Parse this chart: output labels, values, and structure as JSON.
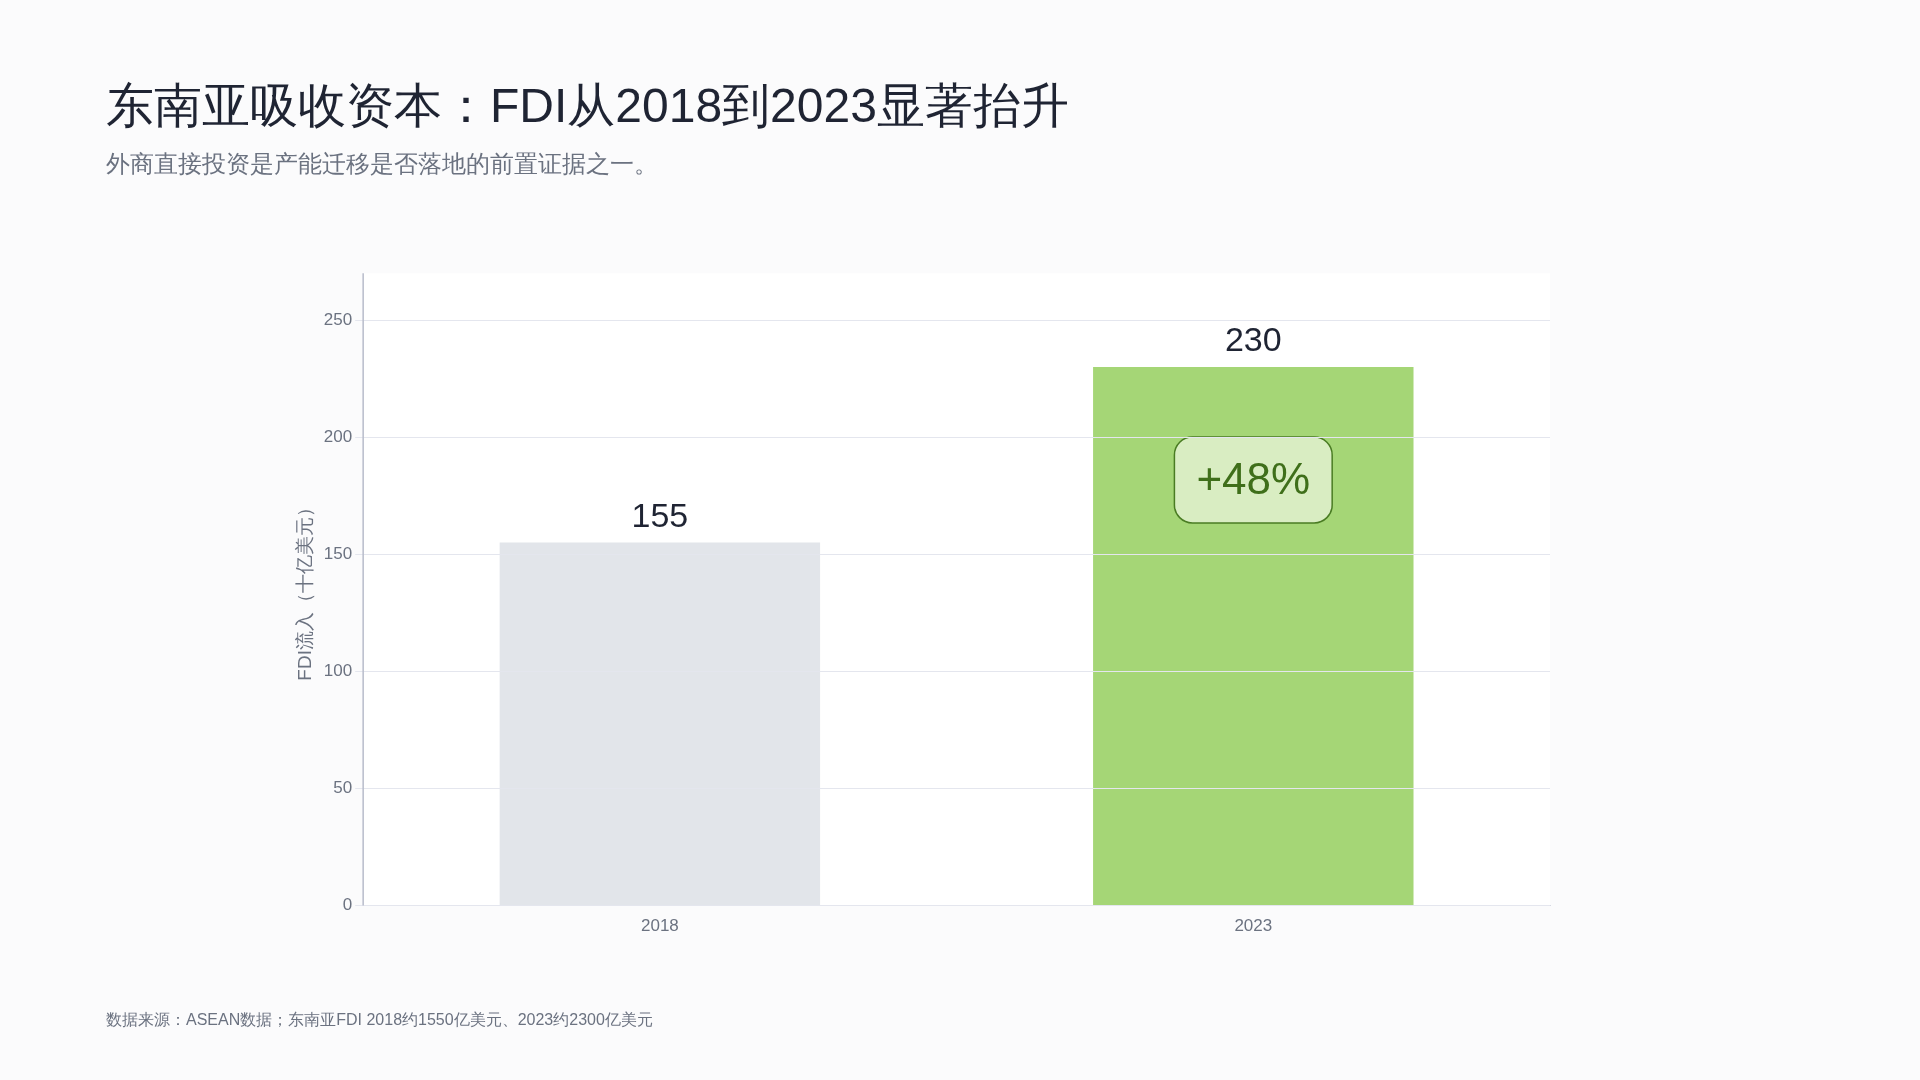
{
  "chart_data": {
    "type": "bar",
    "title": "东南亚吸收资本：FDI从2018到2023显著抬升",
    "subtitle": "外商直接投资是产能迁移是否落地的前置证据之一。",
    "ylabel": "FDI流入（十亿美元）",
    "categories": [
      "2018",
      "2023"
    ],
    "values": [
      155,
      230
    ],
    "colors": [
      "#e2e5ea",
      "#a5d676"
    ],
    "ylim": [
      0,
      270
    ],
    "yticks": [
      0,
      50,
      100,
      150,
      200,
      250
    ],
    "grid": "y",
    "data_labels": true,
    "annotations": [
      "+48%",
      "数据来源：ASEAN数据；东南亚FDI 2018约1550亿美元、2023约2300亿美元"
    ]
  }
}
